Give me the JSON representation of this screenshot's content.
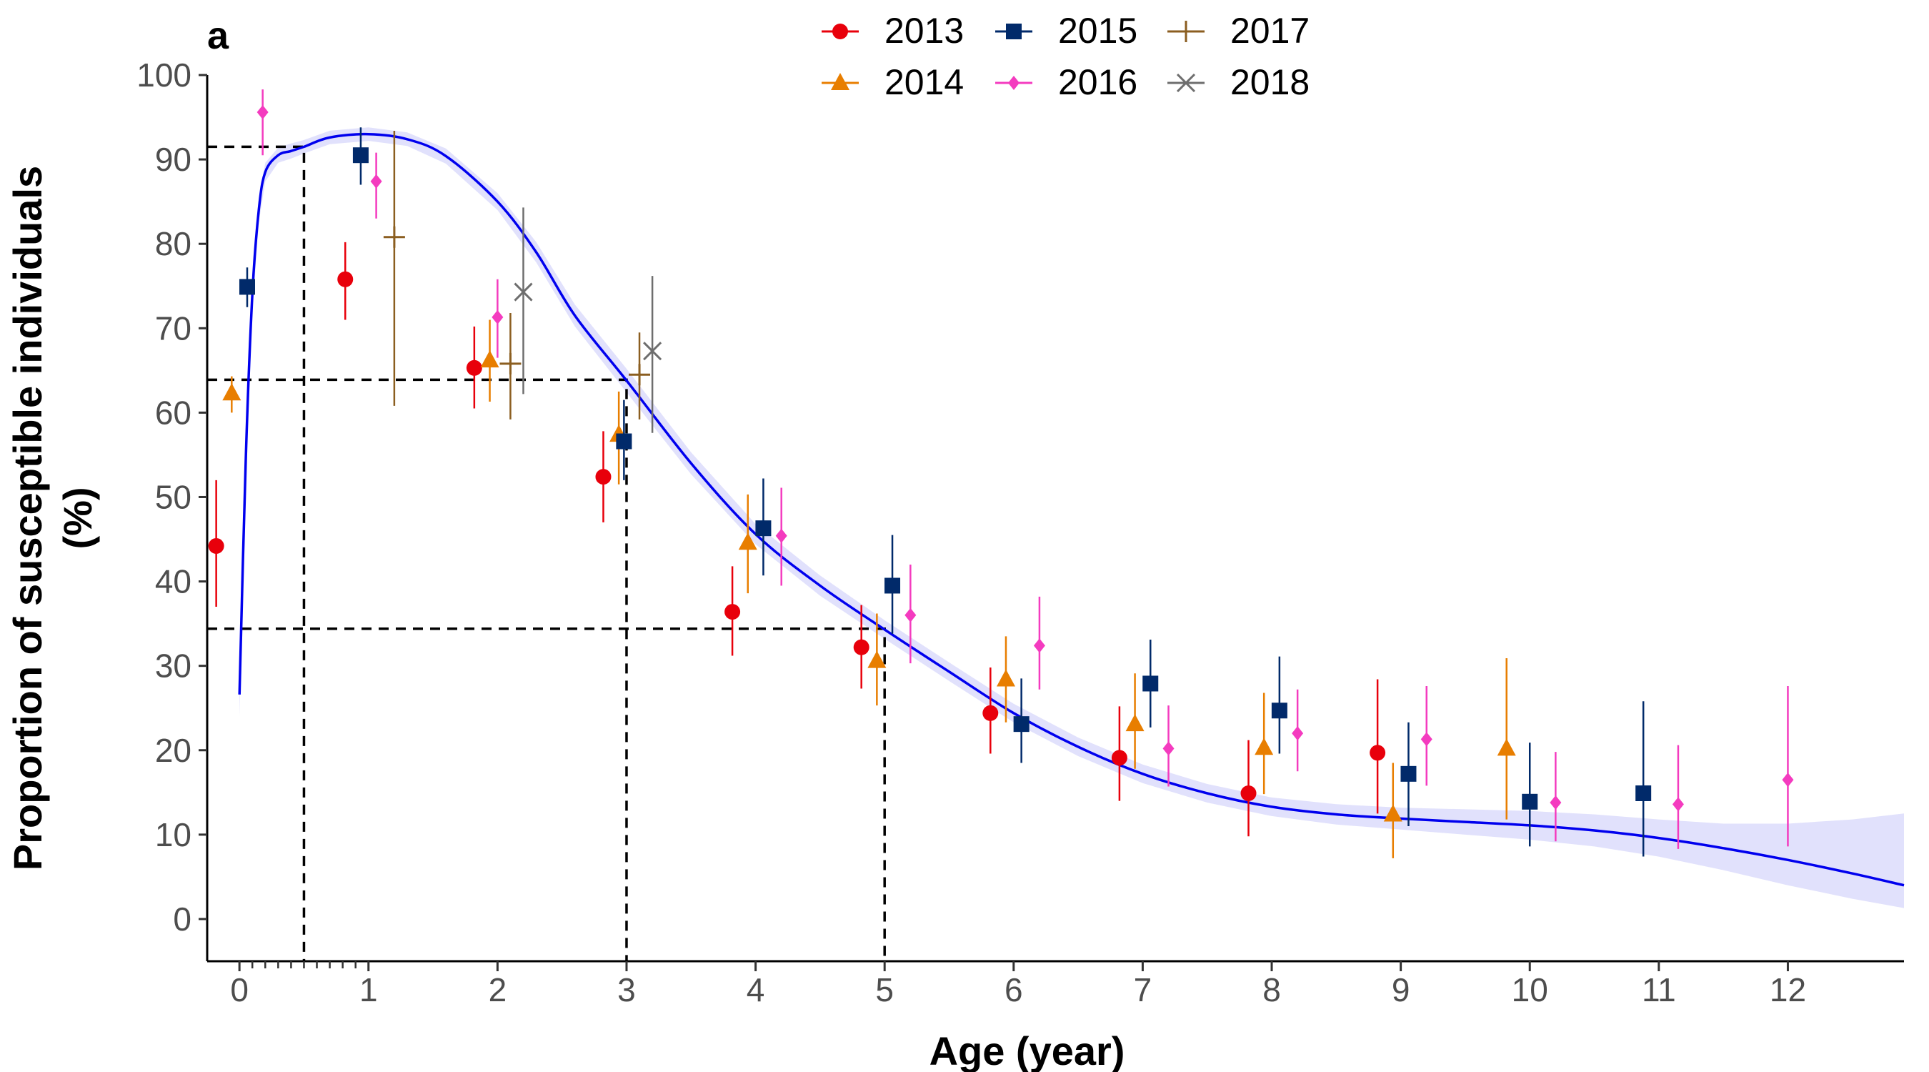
{
  "chart_data": {
    "type": "scatter",
    "panel_label": "a",
    "xlabel": "Age (year)",
    "ylabel_lines": [
      "Proportion of susceptible individuals",
      "(%)"
    ],
    "xlim": [
      -0.25,
      12.9
    ],
    "ylim": [
      -5,
      100
    ],
    "xticks": [
      "0",
      "1",
      "2",
      "3",
      "4",
      "5",
      "6",
      "7",
      "8",
      "9",
      "10",
      "11",
      "12"
    ],
    "xticks_values": [
      0,
      1,
      2,
      3,
      4,
      5,
      6,
      7,
      8,
      9,
      10,
      11,
      12
    ],
    "minor_xticks": [
      0.1,
      0.2,
      0.3,
      0.4,
      0.5,
      0.6,
      0.7,
      0.8,
      0.9
    ],
    "yticks": [
      "0",
      "10",
      "20",
      "30",
      "40",
      "50",
      "60",
      "70",
      "80",
      "90",
      "100"
    ],
    "yticks_values": [
      0,
      10,
      20,
      30,
      40,
      50,
      60,
      70,
      80,
      90,
      100
    ],
    "grid": false,
    "legend_position": "top-center",
    "series": [
      {
        "name": "2013",
        "marker": "circle",
        "color": "#e8000b",
        "x": [
          -0.18,
          0.82,
          1.82,
          2.82,
          3.82,
          4.82,
          5.82,
          6.82,
          7.82,
          8.82
        ],
        "y": [
          44.2,
          75.8,
          65.3,
          52.4,
          36.4,
          32.2,
          24.4,
          19.1,
          14.9,
          19.7
        ],
        "lo": [
          37.0,
          71.0,
          60.5,
          47.0,
          31.2,
          27.3,
          19.6,
          14.0,
          9.8,
          12.5
        ],
        "hi": [
          52.0,
          80.2,
          70.2,
          57.8,
          41.8,
          37.2,
          29.8,
          25.2,
          21.2,
          28.4
        ]
      },
      {
        "name": "2014",
        "marker": "triangle",
        "color": "#e87e00",
        "x": [
          -0.06,
          1.94,
          2.94,
          3.94,
          4.94,
          5.94,
          6.94,
          7.94,
          8.94,
          9.82
        ],
        "y": [
          62.3,
          66.2,
          57.4,
          44.6,
          30.6,
          28.4,
          23.1,
          20.3,
          12.4,
          20.2
        ],
        "lo": [
          60.0,
          61.3,
          51.5,
          38.6,
          25.3,
          23.3,
          17.8,
          14.8,
          7.2,
          11.8
        ],
        "hi": [
          64.3,
          71.0,
          62.5,
          50.3,
          36.2,
          33.5,
          29.1,
          26.8,
          18.5,
          30.9
        ]
      },
      {
        "name": "2015",
        "marker": "square",
        "color": "#012a6a",
        "x": [
          0.06,
          0.94,
          2.98,
          4.06,
          5.06,
          6.06,
          7.06,
          8.06,
          9.06,
          10.0,
          10.88
        ],
        "y": [
          74.9,
          90.5,
          56.6,
          46.3,
          39.5,
          23.1,
          27.9,
          24.7,
          17.2,
          13.9,
          14.9
        ],
        "lo": [
          72.5,
          87.0,
          52.0,
          40.7,
          33.8,
          18.5,
          22.7,
          19.6,
          11.0,
          8.6,
          7.4
        ],
        "hi": [
          77.2,
          93.8,
          61.5,
          52.2,
          45.5,
          28.5,
          33.1,
          31.1,
          23.3,
          20.9,
          25.8
        ]
      },
      {
        "name": "2016",
        "marker": "diamond",
        "color": "#f43bbf",
        "x": [
          0.18,
          1.06,
          2.0,
          4.2,
          5.2,
          6.2,
          7.2,
          8.2,
          9.2,
          10.2,
          11.15,
          12.0
        ],
        "y": [
          95.6,
          87.4,
          71.3,
          45.4,
          36.0,
          32.4,
          20.2,
          22.0,
          21.3,
          13.8,
          13.6,
          16.5
        ],
        "lo": [
          90.5,
          83.0,
          66.5,
          39.5,
          30.3,
          27.2,
          15.7,
          17.5,
          15.8,
          9.2,
          8.3,
          8.6
        ],
        "hi": [
          98.3,
          90.8,
          75.8,
          51.1,
          42.0,
          38.2,
          25.3,
          27.2,
          27.6,
          19.8,
          20.6,
          27.6
        ]
      },
      {
        "name": "2017",
        "marker": "plus",
        "color": "#8b5e20",
        "x": [
          1.2,
          2.1,
          3.1
        ],
        "y": [
          80.8,
          65.8,
          64.5
        ],
        "lo": [
          60.8,
          59.2,
          59.2
        ],
        "hi": [
          93.4,
          71.8,
          69.5
        ]
      },
      {
        "name": "2018",
        "marker": "x",
        "color": "#6e6e6e",
        "x": [
          2.2,
          3.2
        ],
        "y": [
          74.3,
          67.3
        ],
        "lo": [
          62.2,
          57.6
        ],
        "hi": [
          84.3,
          76.2
        ]
      }
    ],
    "fitted_curve": {
      "color": "#0000ee",
      "band_color": "#dcdcfb",
      "x": [
        0.0,
        0.05,
        0.1,
        0.15,
        0.2,
        0.3,
        0.4,
        0.5,
        0.7,
        1.0,
        1.3,
        1.6,
        2.0,
        2.3,
        2.6,
        3.0,
        3.5,
        4.0,
        4.5,
        5.0,
        5.5,
        6.0,
        6.5,
        7.0,
        7.5,
        8.0,
        8.5,
        9.0,
        9.5,
        10.0,
        10.5,
        11.0,
        11.5,
        12.0,
        12.5,
        12.9
      ],
      "y": [
        26.6,
        55.0,
        74.0,
        84.0,
        88.5,
        90.5,
        91.0,
        91.5,
        92.6,
        93.0,
        92.4,
        90.4,
        85.0,
        79.0,
        71.5,
        63.8,
        54.0,
        45.6,
        39.5,
        34.3,
        29.3,
        24.4,
        20.4,
        17.2,
        14.9,
        13.3,
        12.4,
        11.9,
        11.5,
        11.1,
        10.5,
        9.6,
        8.4,
        7.0,
        5.4,
        4.0
      ],
      "lo": [
        24.0,
        52.5,
        72.0,
        82.5,
        87.4,
        89.6,
        90.1,
        90.7,
        91.8,
        92.2,
        91.6,
        89.5,
        84.0,
        77.8,
        70.2,
        62.4,
        52.7,
        44.4,
        38.3,
        33.2,
        28.2,
        23.3,
        19.3,
        16.1,
        13.8,
        12.2,
        11.2,
        10.6,
        10.0,
        9.4,
        8.6,
        7.4,
        5.8,
        4.0,
        2.4,
        1.3
      ],
      "hi": [
        29.2,
        57.5,
        76.0,
        85.5,
        89.6,
        91.4,
        91.9,
        92.3,
        93.4,
        93.8,
        93.2,
        91.3,
        86.0,
        80.2,
        72.8,
        65.2,
        55.3,
        46.8,
        40.7,
        35.4,
        30.4,
        25.5,
        21.5,
        18.3,
        16.0,
        14.4,
        13.6,
        13.2,
        13.0,
        12.8,
        12.4,
        11.8,
        11.3,
        11.3,
        11.8,
        12.5
      ]
    },
    "reference_lines": [
      {
        "x": 0.5,
        "y": 91.5
      },
      {
        "x": 3.0,
        "y": 63.9
      },
      {
        "x": 5.0,
        "y": 34.4
      }
    ]
  }
}
